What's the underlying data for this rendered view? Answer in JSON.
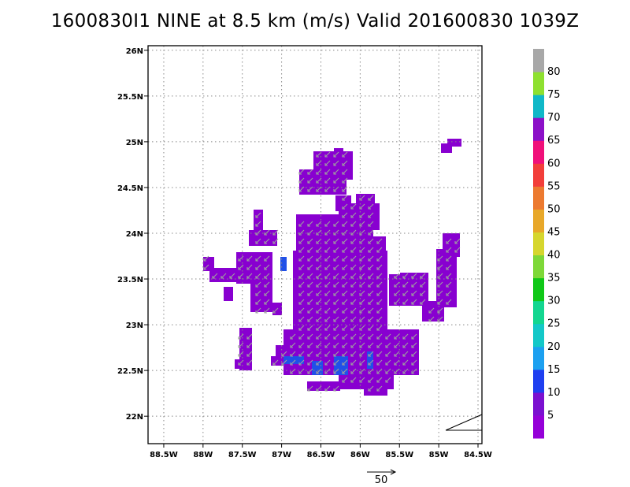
{
  "title": "1600830I1 NINE at 8.5 km (m/s) Valid 201600830 1039Z",
  "map": {
    "lat_range": [
      21.7,
      26.05
    ],
    "lon_range": [
      -88.7,
      -84.45
    ],
    "lat_ticks": [
      {
        "value": 26.0,
        "label": "26N"
      },
      {
        "value": 25.5,
        "label": "25.5N"
      },
      {
        "value": 25.0,
        "label": "25N"
      },
      {
        "value": 24.5,
        "label": "24.5N"
      },
      {
        "value": 24.0,
        "label": "24N"
      },
      {
        "value": 23.5,
        "label": "23.5N"
      },
      {
        "value": 23.0,
        "label": "23N"
      },
      {
        "value": 22.5,
        "label": "22.5N"
      },
      {
        "value": 22.0,
        "label": "22N"
      }
    ],
    "lon_ticks": [
      {
        "value": -88.5,
        "label": "88.5W"
      },
      {
        "value": -88.0,
        "label": "88W"
      },
      {
        "value": -87.5,
        "label": "87.5W"
      },
      {
        "value": -87.0,
        "label": "87W"
      },
      {
        "value": -86.5,
        "label": "86.5W"
      },
      {
        "value": -86.0,
        "label": "86W"
      },
      {
        "value": -85.5,
        "label": "85.5W"
      },
      {
        "value": -85.0,
        "label": "85W"
      },
      {
        "value": -84.5,
        "label": "84.5W"
      }
    ],
    "grid": true,
    "field_color": "#8800d0",
    "low_speed_color": "#2050e8",
    "vector_color": "#a0a0a0",
    "reference_vector": {
      "value": 50,
      "label": "50"
    }
  },
  "colorbar": {
    "colors": [
      "#9500d8",
      "#7b10d0",
      "#1f3ff0",
      "#1ca0f0",
      "#14c8c8",
      "#13d690",
      "#10c818",
      "#7ed838",
      "#d6d62e",
      "#e8a82a",
      "#ec7a30",
      "#f23e3a",
      "#f0107a",
      "#8c10c8",
      "#10b8c8",
      "#8ee030",
      "#a8a8a8"
    ],
    "labels": [
      "5",
      "10",
      "15",
      "20",
      "25",
      "30",
      "35",
      "40",
      "45",
      "50",
      "55",
      "60",
      "65",
      "70",
      "75",
      "80"
    ]
  }
}
